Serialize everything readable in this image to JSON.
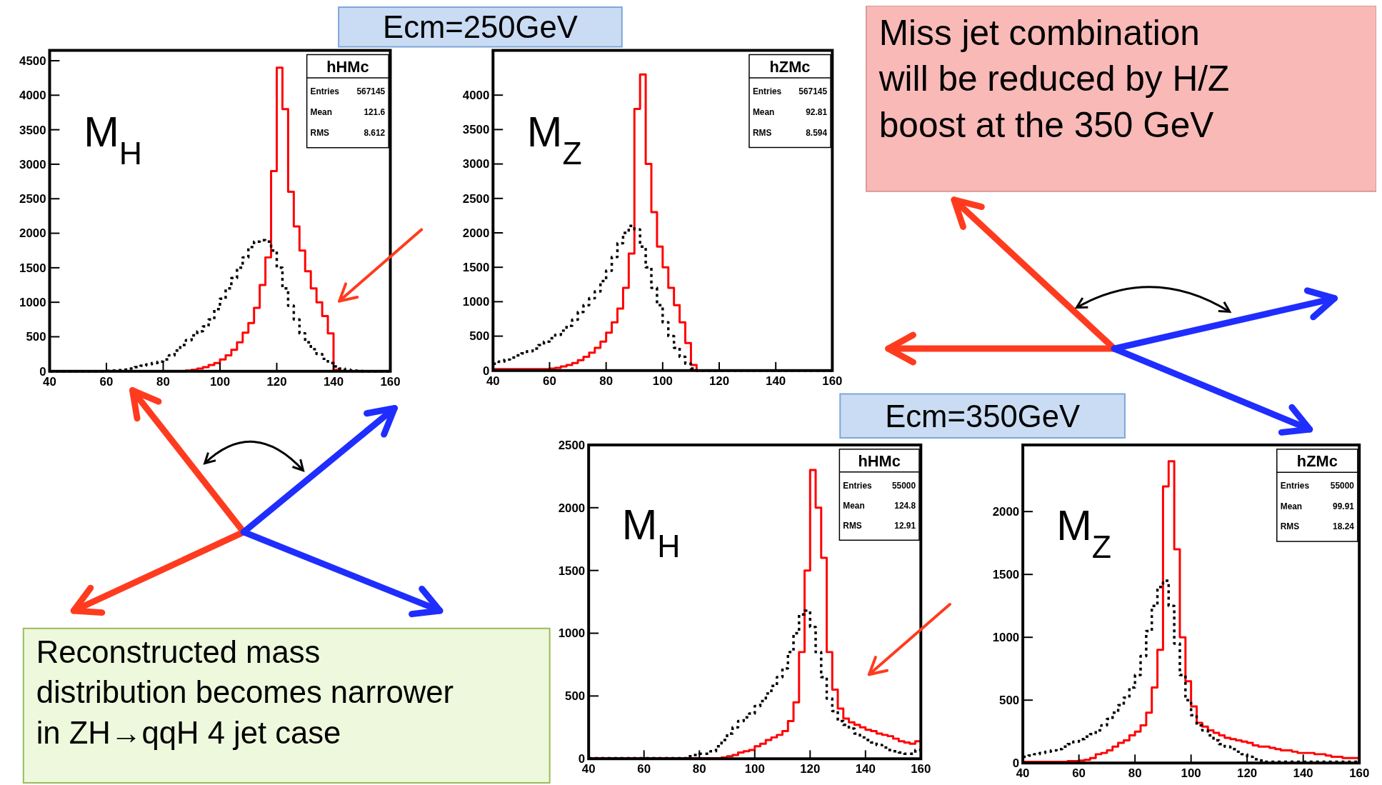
{
  "chart_data": [
    {
      "type": "histogram",
      "bins": [
        40,
        42,
        44,
        46,
        48,
        50,
        52,
        54,
        56,
        58,
        60,
        62,
        64,
        66,
        68,
        70,
        72,
        74,
        76,
        78,
        80,
        82,
        84,
        86,
        88,
        90,
        92,
        94,
        96,
        98,
        100,
        102,
        104,
        106,
        108,
        110,
        112,
        114,
        116,
        118,
        120,
        122,
        124,
        126,
        128,
        130,
        132,
        134,
        136,
        138,
        140,
        142,
        144,
        146,
        148,
        150,
        152,
        154,
        156,
        158,
        160
      ],
      "series": [
        {
          "color": "#ff0000",
          "line_style": "solid",
          "values": [
            0,
            0,
            0,
            0,
            0,
            0,
            0,
            0,
            0,
            0,
            0,
            0,
            0,
            0,
            0,
            0,
            0,
            0,
            0,
            0,
            0,
            0,
            0,
            0,
            10,
            20,
            40,
            60,
            90,
            120,
            170,
            230,
            310,
            420,
            560,
            700,
            920,
            1250,
            1650,
            2900,
            4400,
            3800,
            2600,
            2100,
            1750,
            1450,
            1200,
            1000,
            800,
            550,
            20,
            5,
            0,
            0,
            0,
            0,
            0,
            0,
            0,
            0
          ]
        },
        {
          "color": "#000000",
          "line_style": "dotted",
          "values": [
            0,
            0,
            0,
            0,
            0,
            0,
            0,
            0,
            0,
            0,
            5,
            10,
            15,
            25,
            40,
            60,
            80,
            100,
            120,
            140,
            170,
            230,
            300,
            380,
            450,
            520,
            580,
            650,
            750,
            900,
            1050,
            1200,
            1350,
            1500,
            1650,
            1800,
            1880,
            1900,
            1880,
            1750,
            1500,
            1200,
            950,
            750,
            550,
            420,
            320,
            250,
            180,
            120,
            70,
            40,
            20,
            10,
            5,
            0,
            0,
            0,
            0,
            0
          ]
        }
      ],
      "xlim": [
        40,
        160
      ],
      "ylim": [
        0,
        4650
      ],
      "xticks": [
        40,
        60,
        80,
        100,
        120,
        140,
        160
      ],
      "yticks": [
        0,
        500,
        1000,
        1500,
        2000,
        2500,
        3000,
        3500,
        4000,
        4500
      ],
      "annotations": [
        "M$_{H}$",
        "hHMc",
        "Entries",
        "567145",
        "Mean",
        "121.6",
        "RMS",
        "8.612",
        "Ecm=250GeV"
      ]
    },
    {
      "type": "histogram",
      "bins": [
        40,
        42,
        44,
        46,
        48,
        50,
        52,
        54,
        56,
        58,
        60,
        62,
        64,
        66,
        68,
        70,
        72,
        74,
        76,
        78,
        80,
        82,
        84,
        86,
        88,
        90,
        92,
        94,
        96,
        98,
        100,
        102,
        104,
        106,
        108,
        110,
        112,
        114,
        116,
        118,
        120,
        122,
        124,
        126,
        128,
        130,
        132,
        134,
        136,
        138,
        140,
        142,
        144,
        146,
        148,
        150,
        152,
        154,
        156,
        158,
        160
      ],
      "series": [
        {
          "color": "#ff0000",
          "line_style": "solid",
          "values": [
            20,
            20,
            20,
            20,
            20,
            20,
            20,
            20,
            20,
            20,
            30,
            40,
            60,
            80,
            110,
            150,
            200,
            260,
            330,
            420,
            550,
            700,
            900,
            1200,
            1700,
            3800,
            4300,
            3000,
            2300,
            1800,
            1500,
            1200,
            950,
            700,
            400,
            80,
            0,
            0,
            0,
            0,
            0,
            0,
            0,
            0,
            0,
            0,
            0,
            0,
            0,
            0,
            0,
            0,
            0,
            0,
            0,
            0,
            0,
            0,
            0,
            0
          ]
        },
        {
          "color": "#000000",
          "line_style": "dotted",
          "values": [
            100,
            130,
            160,
            190,
            220,
            250,
            280,
            320,
            370,
            420,
            470,
            520,
            580,
            650,
            740,
            850,
            950,
            1050,
            1150,
            1300,
            1450,
            1650,
            1850,
            2000,
            2100,
            2050,
            1800,
            1500,
            1200,
            950,
            700,
            500,
            330,
            200,
            100,
            30,
            0,
            0,
            0,
            0,
            0,
            0,
            0,
            0,
            0,
            0,
            0,
            0,
            0,
            0,
            0,
            0,
            0,
            0,
            0,
            0,
            0,
            0,
            0,
            0
          ]
        }
      ],
      "xlim": [
        40,
        160
      ],
      "ylim": [
        0,
        4650
      ],
      "xticks": [
        40,
        60,
        80,
        100,
        120,
        140,
        160
      ],
      "yticks": [
        0,
        500,
        1000,
        1500,
        2000,
        2500,
        3000,
        3500,
        4000
      ],
      "annotations": [
        "M$_{Z}$",
        "hZMc",
        "Entries",
        "567145",
        "Mean",
        "92.81",
        "RMS",
        "8.594",
        "Miss jet combination will be reduced by H/Z boost at the 350 GeV"
      ]
    },
    {
      "type": "histogram",
      "bins": [
        40,
        42,
        44,
        46,
        48,
        50,
        52,
        54,
        56,
        58,
        60,
        62,
        64,
        66,
        68,
        70,
        72,
        74,
        76,
        78,
        80,
        82,
        84,
        86,
        88,
        90,
        92,
        94,
        96,
        98,
        100,
        102,
        104,
        106,
        108,
        110,
        112,
        114,
        116,
        118,
        120,
        122,
        124,
        126,
        128,
        130,
        132,
        134,
        136,
        138,
        140,
        142,
        144,
        146,
        148,
        150,
        152,
        154,
        156,
        158,
        160
      ],
      "series": [
        {
          "color": "#ff0000",
          "line_style": "solid",
          "values": [
            5,
            5,
            5,
            5,
            5,
            5,
            5,
            5,
            5,
            5,
            5,
            5,
            5,
            5,
            5,
            5,
            5,
            5,
            5,
            5,
            5,
            5,
            5,
            5,
            10,
            20,
            30,
            50,
            60,
            70,
            100,
            120,
            150,
            170,
            190,
            220,
            300,
            450,
            850,
            1500,
            2300,
            2000,
            1600,
            850,
            550,
            400,
            320,
            290,
            270,
            250,
            230,
            220,
            200,
            190,
            180,
            160,
            140,
            130,
            120,
            140
          ]
        },
        {
          "color": "#000000",
          "line_style": "dotted",
          "values": [
            5,
            5,
            5,
            5,
            5,
            5,
            5,
            5,
            5,
            5,
            5,
            5,
            5,
            5,
            5,
            5,
            5,
            5,
            20,
            30,
            40,
            40,
            60,
            100,
            150,
            200,
            250,
            300,
            330,
            360,
            420,
            460,
            520,
            580,
            650,
            720,
            850,
            1000,
            1150,
            1180,
            1050,
            850,
            650,
            480,
            380,
            300,
            270,
            240,
            200,
            170,
            150,
            130,
            110,
            90,
            70,
            60,
            50,
            40,
            40,
            70
          ]
        }
      ],
      "xlim": [
        40,
        160
      ],
      "ylim": [
        0,
        2500
      ],
      "xticks": [
        40,
        60,
        80,
        100,
        120,
        140,
        160
      ],
      "yticks": [
        0,
        500,
        1000,
        1500,
        2000,
        2500
      ],
      "annotations": [
        "M$_{H}$",
        "hHMc",
        "Entries",
        "55000",
        "Mean",
        "124.8",
        "RMS",
        "12.91",
        "Ecm=350GeV",
        "Reconstructed mass distribution becomes narrower in ZH→qqH 4 jet case"
      ]
    },
    {
      "type": "histogram",
      "bins": [
        40,
        42,
        44,
        46,
        48,
        50,
        52,
        54,
        56,
        58,
        60,
        62,
        64,
        66,
        68,
        70,
        72,
        74,
        76,
        78,
        80,
        82,
        84,
        86,
        88,
        90,
        92,
        94,
        96,
        98,
        100,
        102,
        104,
        106,
        108,
        110,
        112,
        114,
        116,
        118,
        120,
        122,
        124,
        126,
        128,
        130,
        132,
        134,
        136,
        138,
        140,
        142,
        144,
        146,
        148,
        150,
        152,
        154,
        156,
        158,
        160
      ],
      "series": [
        {
          "color": "#ff0000",
          "line_style": "solid",
          "values": [
            10,
            10,
            10,
            10,
            10,
            10,
            10,
            10,
            15,
            15,
            20,
            25,
            40,
            70,
            80,
            100,
            130,
            160,
            180,
            220,
            250,
            300,
            400,
            600,
            900,
            2200,
            2400,
            1700,
            1000,
            650,
            450,
            320,
            290,
            260,
            240,
            220,
            200,
            190,
            180,
            170,
            160,
            140,
            130,
            130,
            120,
            110,
            100,
            100,
            90,
            80,
            80,
            80,
            70,
            70,
            60,
            50,
            50,
            40,
            40,
            40
          ]
        },
        {
          "color": "#000000",
          "line_style": "dotted",
          "values": [
            50,
            60,
            70,
            80,
            90,
            100,
            110,
            130,
            150,
            170,
            190,
            210,
            230,
            260,
            300,
            350,
            400,
            460,
            520,
            600,
            700,
            850,
            1050,
            1250,
            1400,
            1450,
            1250,
            950,
            700,
            500,
            380,
            300,
            260,
            220,
            180,
            150,
            130,
            110,
            90,
            70,
            50,
            30,
            20,
            10,
            10,
            10,
            10,
            10,
            10,
            10,
            10,
            10,
            10,
            10,
            10,
            10,
            10,
            10,
            10,
            10
          ]
        }
      ],
      "xlim": [
        40,
        160
      ],
      "ylim": [
        0,
        2530
      ],
      "xticks": [
        40,
        60,
        80,
        100,
        120,
        140,
        160
      ],
      "yticks": [
        0,
        500,
        1000,
        1500,
        2000
      ],
      "annotations": [
        "M$_{Z}$",
        "hZMc",
        "Entries",
        "55000",
        "Mean",
        "99.91",
        "RMS",
        "18.24"
      ]
    }
  ]
}
